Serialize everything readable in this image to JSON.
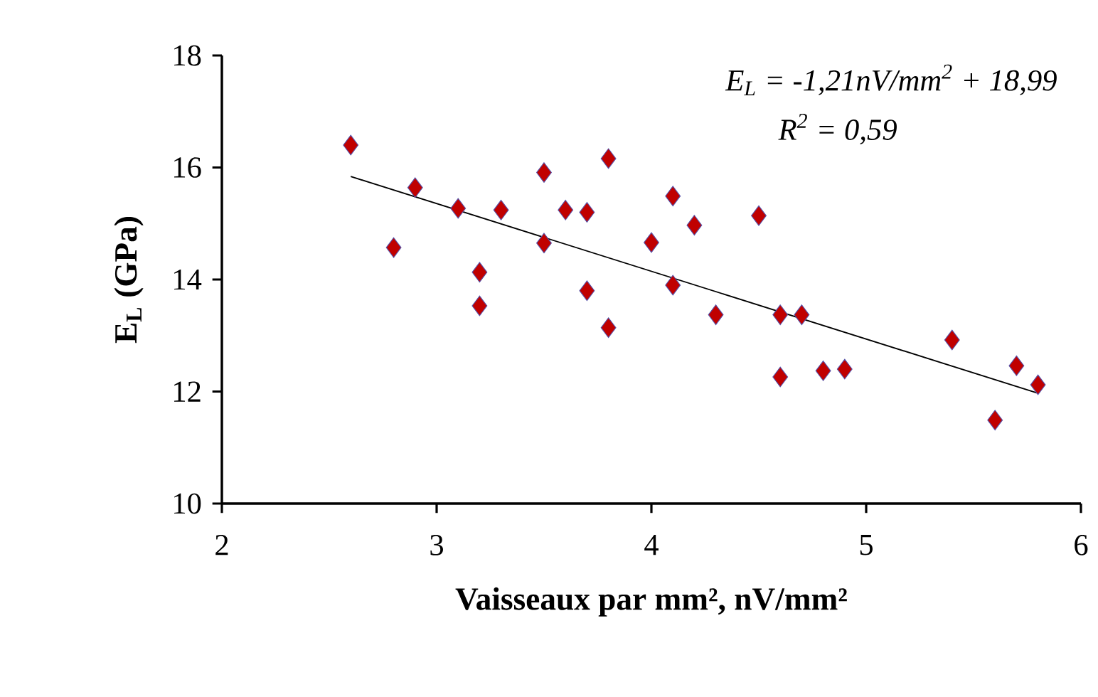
{
  "chart_data": {
    "type": "scatter",
    "xlabel": "Vaisseaux par mm², nV/mm²",
    "ylabel": "E$_{L}$ (GPa)",
    "annotations": [
      "E$_{L}$ = -1,21nV/mm$^{2}$ + 18,99",
      "R$^{2}$ = 0,59"
    ],
    "xlim": [
      2,
      6
    ],
    "xticks": [
      2,
      3,
      4,
      5,
      6
    ],
    "ylim": [
      10,
      18
    ],
    "yticks": [
      10,
      12,
      14,
      16,
      18
    ],
    "grid": false,
    "series": [
      {
        "marker": "diamond",
        "color": "#c00000",
        "x": [
          2.6,
          2.8,
          2.9,
          3.1,
          3.2,
          3.2,
          3.3,
          3.5,
          3.5,
          3.6,
          3.7,
          3.7,
          3.8,
          3.8,
          4.0,
          4.1,
          4.1,
          4.2,
          4.3,
          4.5,
          4.6,
          4.6,
          4.7,
          4.8,
          4.9,
          5.4,
          5.6,
          5.7,
          5.8
        ],
        "values": [
          16.4,
          14.57,
          15.64,
          15.27,
          14.13,
          13.53,
          15.24,
          15.91,
          14.65,
          15.24,
          15.2,
          13.8,
          16.16,
          13.14,
          14.66,
          15.49,
          13.9,
          14.97,
          13.37,
          15.14,
          13.37,
          12.26,
          13.37,
          12.37,
          12.4,
          12.92,
          11.49,
          12.46,
          12.12
        ]
      },
      {
        "type": "line",
        "color": "#000000",
        "x": [
          2.6,
          5.8
        ],
        "values": [
          15.84,
          11.97
        ]
      }
    ]
  }
}
